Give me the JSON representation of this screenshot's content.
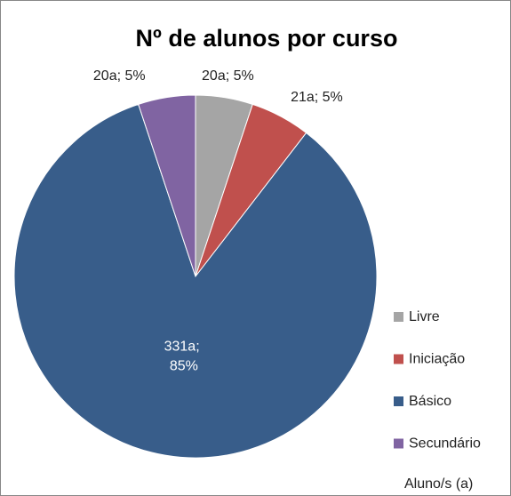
{
  "chart_data": {
    "type": "pie",
    "title": "Nº de alunos por curso",
    "categories": [
      "Livre",
      "Iniciação",
      "Básico",
      "Secundário"
    ],
    "values": [
      20,
      21,
      331,
      20
    ],
    "value_labels": [
      "20a; 5%",
      "21a; 5%",
      "331a; 85%",
      "20a; 5%"
    ],
    "colors": [
      "#a5a5a5",
      "#c0504d",
      "#385d8a",
      "#8064a2"
    ],
    "legend": "right",
    "annotation": "Aluno/s (a)"
  }
}
